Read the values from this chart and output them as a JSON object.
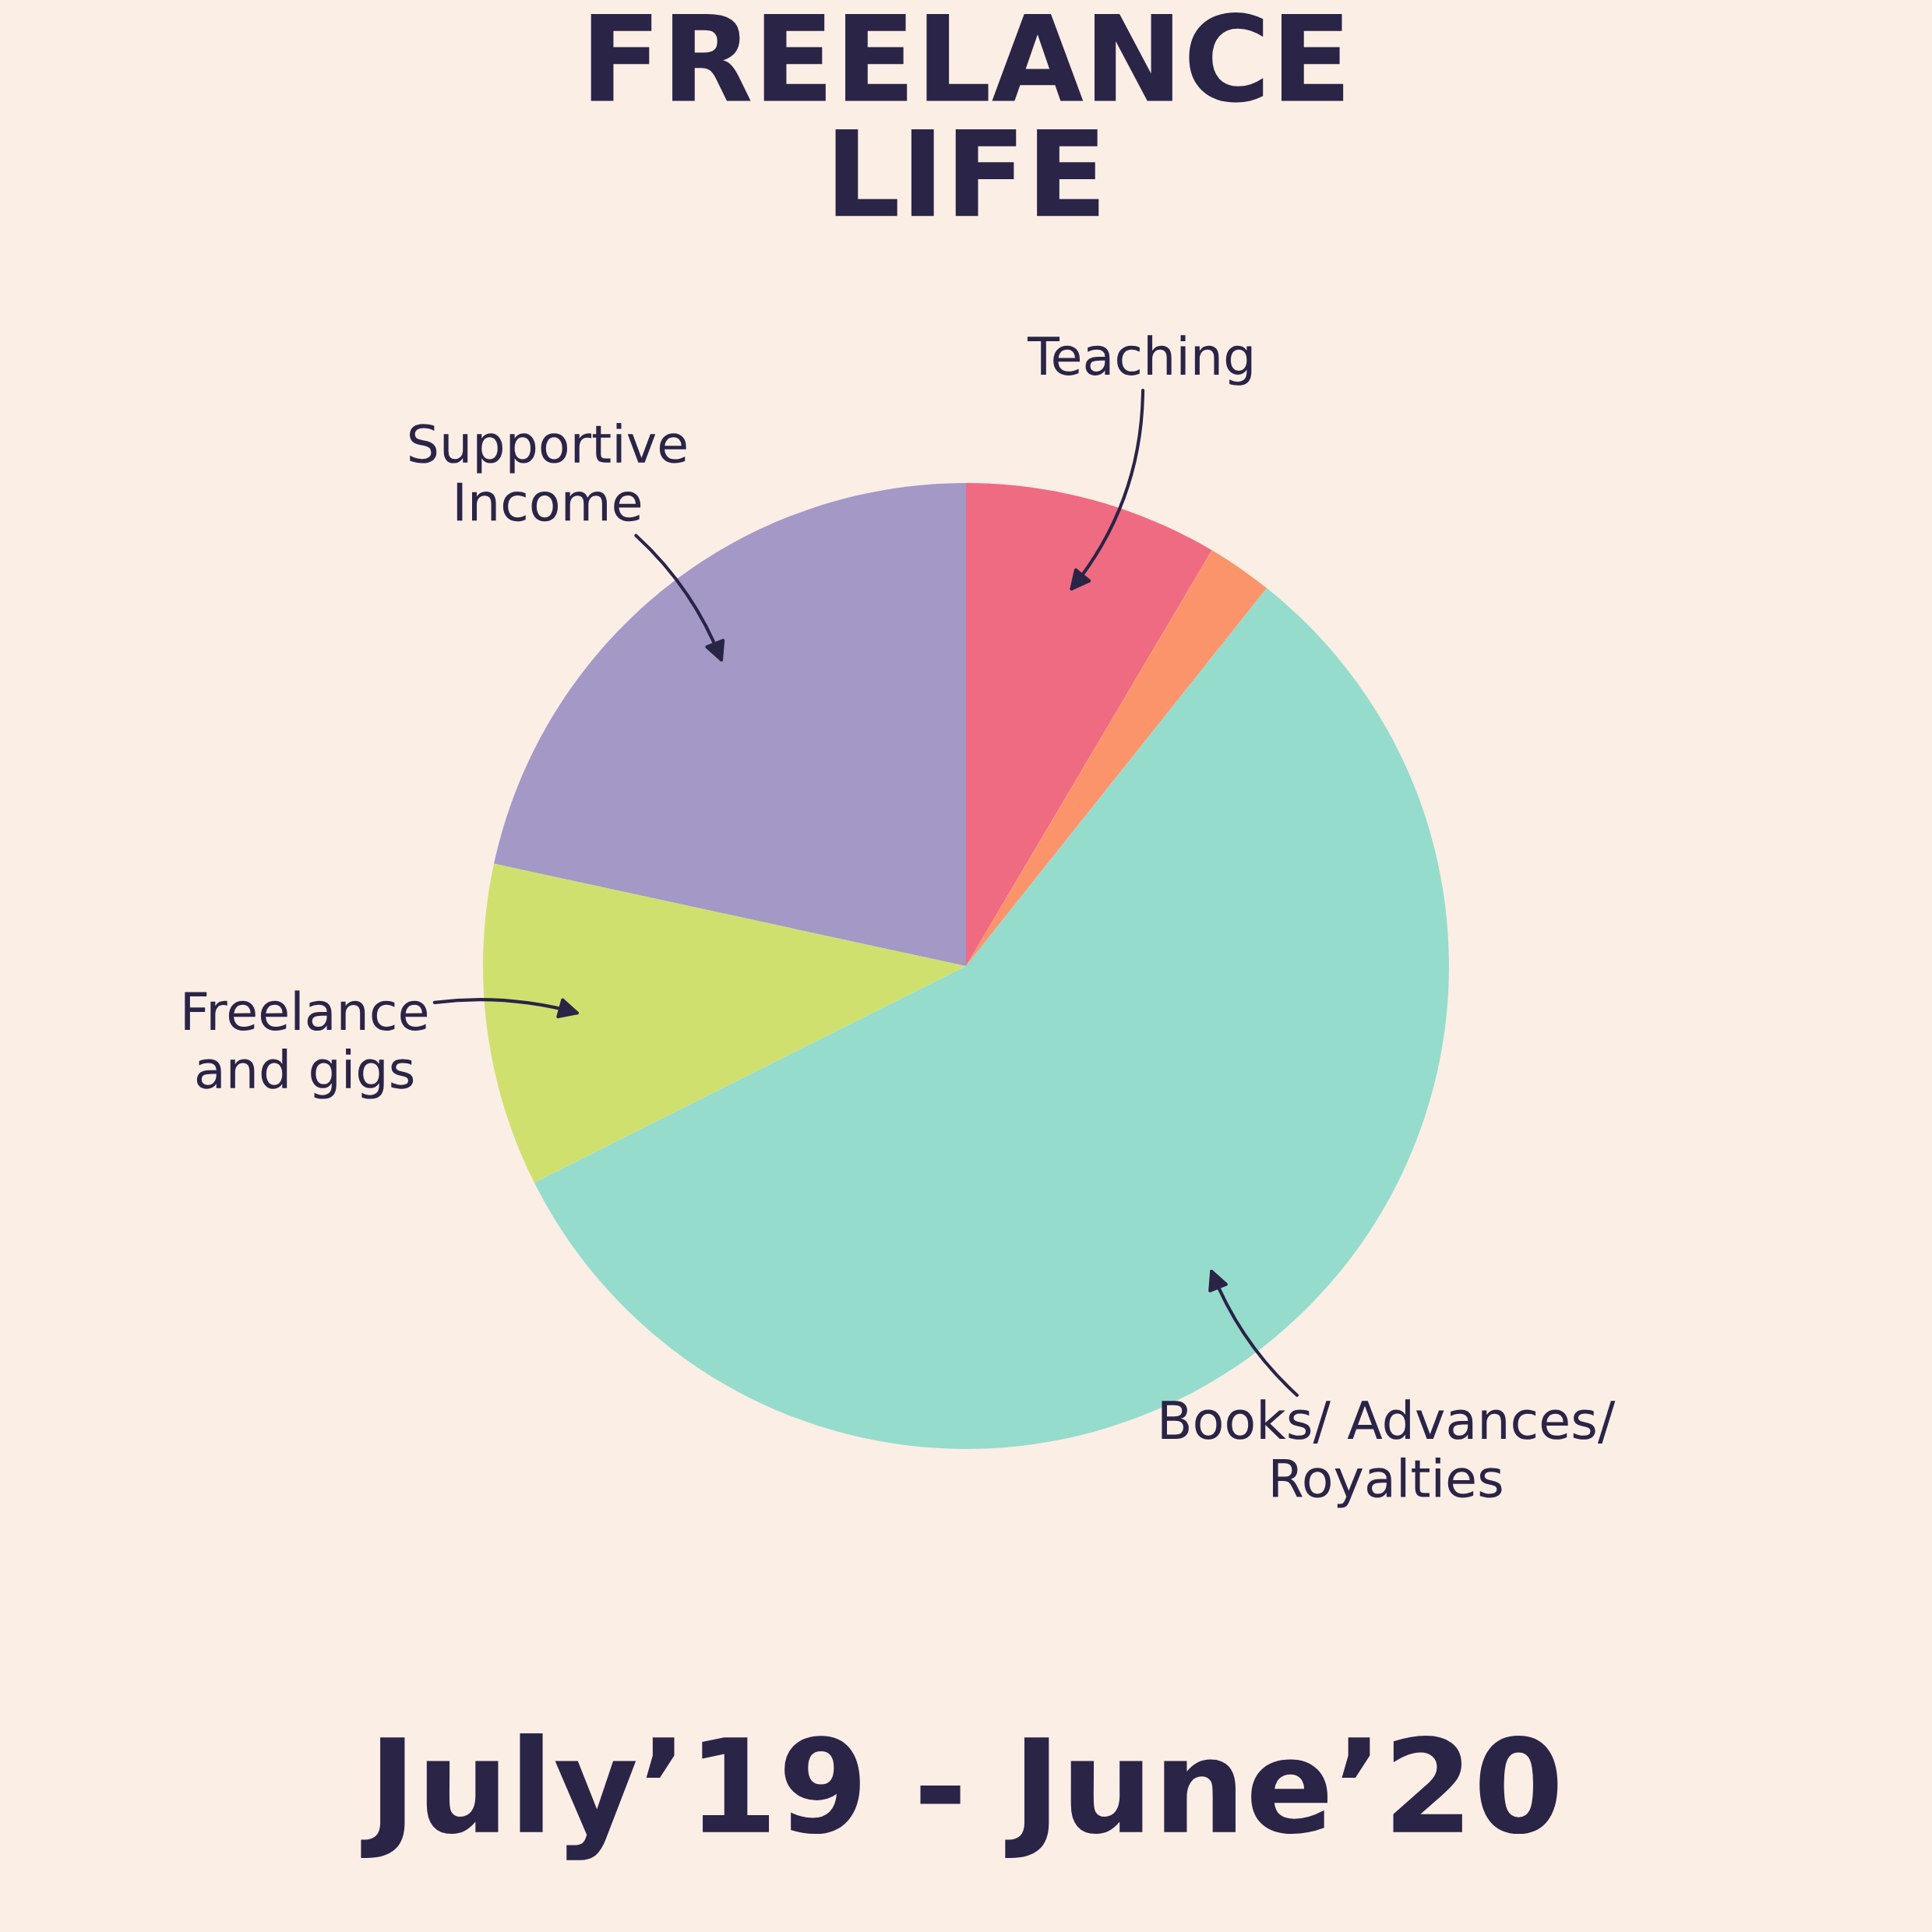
{
  "chart_data": {
    "type": "pie",
    "title": "FREELANCE\nLIFE",
    "subtitle": "July’19 - June’20",
    "categories": [
      "Teaching",
      null,
      "Books/ Advances/\nRoyalties",
      "Freelance\nand gigs",
      "Supportive\nIncome"
    ],
    "values": [
      8.5,
      2.2,
      56.9,
      10.8,
      21.6
    ],
    "colors": [
      "#ef6b82",
      "#fc946b",
      "#95dccd",
      "#d0e06e",
      "#a398c6"
    ]
  }
}
